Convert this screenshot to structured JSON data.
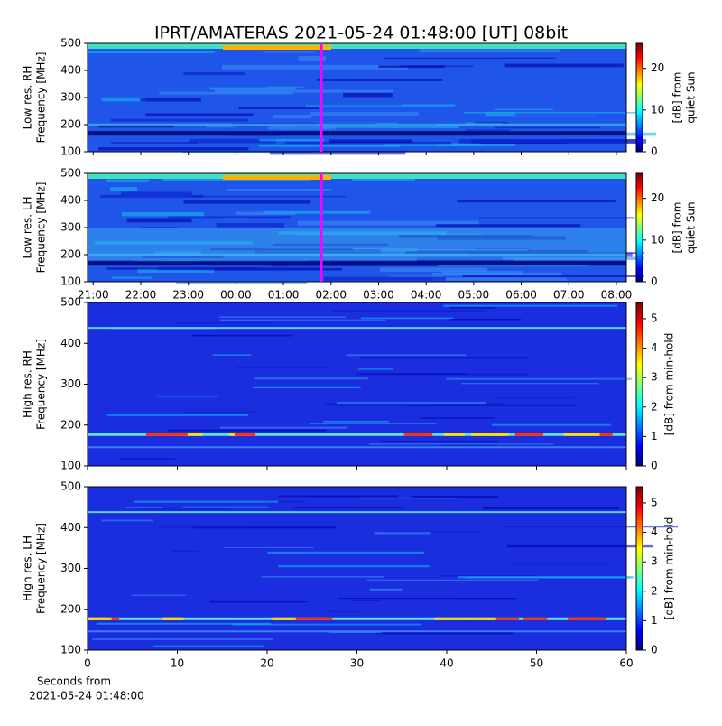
{
  "title": "IPRT/AMATERAS 2021-05-24 01:48:00 [UT]   08bit",
  "chart_data": [
    {
      "type": "spectrogram",
      "ylabel": [
        "Low res. RH",
        "Frequency [MHz]"
      ],
      "ylim": [
        100,
        500
      ],
      "yticks": [
        100,
        200,
        300,
        400,
        500
      ],
      "xlim": [
        20.88,
        32.21
      ],
      "xticks": [
        21,
        22,
        23,
        24,
        25,
        26,
        27,
        28,
        29,
        30,
        31,
        32
      ],
      "show_xticklabels": false,
      "marker_x": 25.8,
      "marker_color": "#ff00ff",
      "colorbar_label": [
        "[dB] from",
        "quiet Sun"
      ],
      "clim": [
        0,
        26
      ],
      "cticks": [
        0,
        10,
        20
      ]
    },
    {
      "type": "spectrogram",
      "ylabel": [
        "Low res. LH",
        "Frequency [MHz]"
      ],
      "ylim": [
        100,
        500
      ],
      "yticks": [
        100,
        200,
        300,
        400,
        500
      ],
      "xlim": [
        20.88,
        32.21
      ],
      "xticks": [
        {
          "value": 21,
          "label": "21:00"
        },
        {
          "value": 22,
          "label": "22:00"
        },
        {
          "value": 23,
          "label": "23:00"
        },
        {
          "value": 24,
          "label": "00:00"
        },
        {
          "value": 25,
          "label": "01:00"
        },
        {
          "value": 26,
          "label": "02:00"
        },
        {
          "value": 27,
          "label": "03:00"
        },
        {
          "value": 28,
          "label": "04:00"
        },
        {
          "value": 29,
          "label": "05:00"
        },
        {
          "value": 30,
          "label": "06:00"
        },
        {
          "value": 31,
          "label": "07:00"
        },
        {
          "value": 32,
          "label": "08:00"
        }
      ],
      "show_xticklabels": true,
      "marker_x": 25.8,
      "marker_color": "#ff00ff",
      "colorbar_label": [
        "[dB] from",
        "quiet Sun"
      ],
      "clim": [
        0,
        26
      ],
      "cticks": [
        0,
        10,
        20
      ]
    },
    {
      "type": "spectrogram",
      "ylabel": [
        "High res. RH",
        "Frequency [MHz]"
      ],
      "ylim": [
        100,
        500
      ],
      "yticks": [
        100,
        200,
        300,
        400,
        500
      ],
      "xlim": [
        0,
        60
      ],
      "xticks": [
        0,
        10,
        20,
        30,
        40,
        50,
        60
      ],
      "show_xticklabels": false,
      "colorbar_label": [
        "[dB] from min-hold"
      ],
      "clim": [
        0,
        5.55
      ],
      "cticks": [
        0,
        1,
        2,
        3,
        4,
        5
      ]
    },
    {
      "type": "spectrogram",
      "ylabel": [
        "High res. LH",
        "Frequency [MHz]"
      ],
      "ylim": [
        100,
        500
      ],
      "yticks": [
        100,
        200,
        300,
        400,
        500
      ],
      "xlim": [
        0,
        60
      ],
      "xticks": [
        0,
        10,
        20,
        30,
        40,
        50,
        60
      ],
      "show_xticklabels": true,
      "xlabel": [
        "Seconds from",
        "2021-05-24 01:48:00"
      ],
      "colorbar_label": [
        "[dB] from min-hold"
      ],
      "clim": [
        0,
        5.55
      ],
      "cticks": [
        0,
        1,
        2,
        3,
        4,
        5
      ]
    }
  ]
}
